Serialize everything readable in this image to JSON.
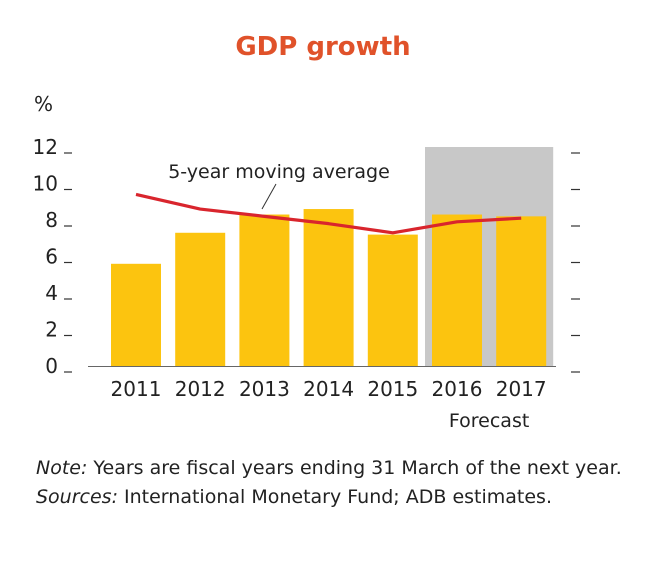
{
  "chart_data": {
    "type": "bar",
    "title": "GDP growth",
    "yunit": "%",
    "categories": [
      "2011",
      "2012",
      "2013",
      "2014",
      "2015",
      "2016",
      "2017"
    ],
    "series": [
      {
        "type": "bar",
        "values": [
          5.6,
          7.3,
          8.3,
          8.6,
          7.2,
          8.3,
          8.2
        ]
      },
      {
        "type": "line",
        "values": [
          9.4,
          8.6,
          8.2,
          7.8,
          7.3,
          7.9,
          8.1
        ]
      }
    ],
    "ylim": [
      0,
      12
    ],
    "yticks": [
      0,
      2,
      4,
      6,
      8,
      10,
      12
    ],
    "forecast_categories": [
      "2016",
      "2017"
    ],
    "forecast_label": "Forecast",
    "annotation": "5-year moving average",
    "colors": {
      "bar": "#fcc40f",
      "line": "#d9252d",
      "forecast_band": "#c8c8c8",
      "title": "#e0522a"
    },
    "grid": false
  },
  "notes": {
    "note_lead": "Note:",
    "note_text": " Years are fiscal years ending 31 March of the next year.",
    "sources_lead": "Sources:",
    "sources_text": " International Monetary Fund; ADB estimates."
  }
}
